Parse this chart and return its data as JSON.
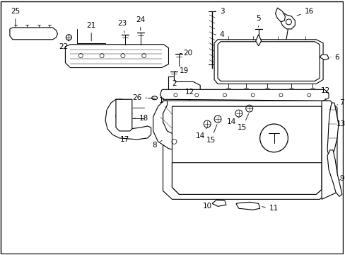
{
  "background_color": "#ffffff",
  "border_color": "#000000",
  "figsize": [
    4.89,
    3.6
  ],
  "dpi": 100,
  "line_color": "#000000",
  "text_color": "#000000",
  "font_size": 7.5
}
